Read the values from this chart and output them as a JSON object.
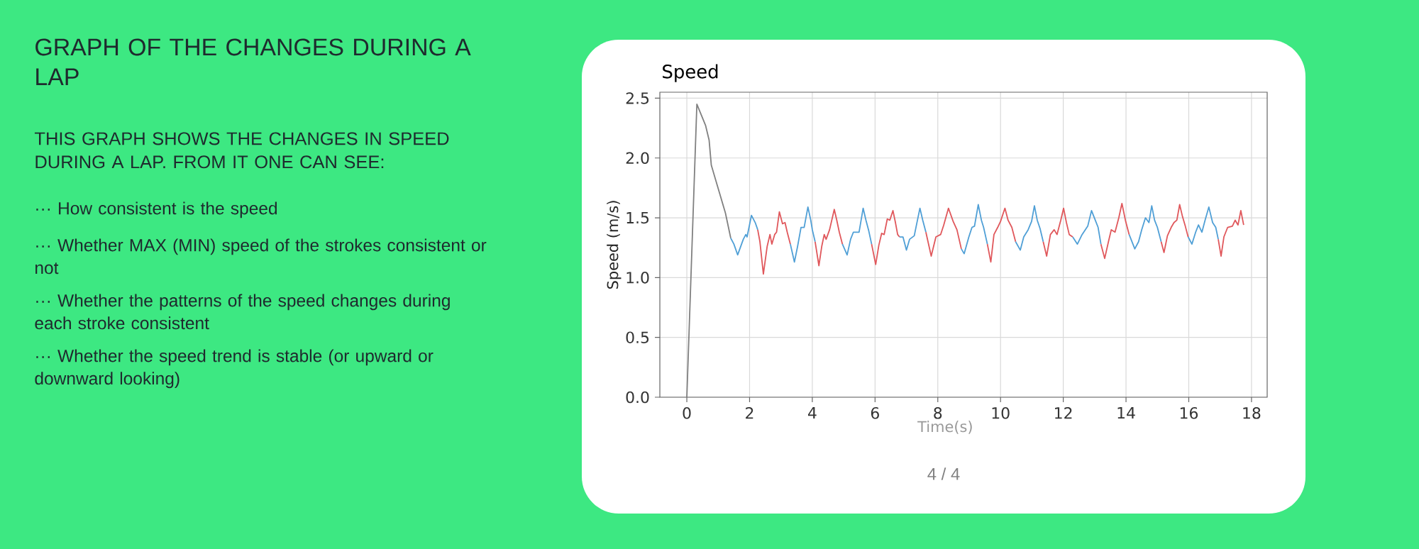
{
  "chart_data": {
    "type": "line",
    "title": "Speed",
    "xlabel": "Time(s)",
    "ylabel": "Speed (m/s)",
    "annotations": [
      "GRAPH OF THE CHANGES DURING A LAP",
      "THIS GRAPH SHOWS THE CHANGES IN SPEED DURING A LAP. FROM IT ONE CAN SEE:",
      "··· How consistent is the speed",
      "··· Whether MAX (MIN) speed of the strokes consistent or not",
      "··· Whether the patterns of the speed changes during each stroke consistent",
      "··· Whether the speed trend is stable (or upward or downward looking)",
      "4 / 4"
    ],
    "xlim": [
      -0.86,
      18.5
    ],
    "ylim": [
      0,
      2.55
    ],
    "xticks": [
      0,
      2,
      4,
      6,
      8,
      10,
      12,
      14,
      16,
      18
    ],
    "yticks": [
      {
        "value": 0,
        "label": "0.0"
      },
      0.5,
      {
        "value": 1,
        "label": "1.0"
      },
      1.5,
      {
        "value": 2,
        "label": "2.0"
      },
      2.5
    ],
    "grid": true,
    "line_style": "solid",
    "marker": "none",
    "series": [
      {
        "color": "#808080",
        "x": [
          0,
          0.32,
          0.6,
          0.71,
          0.78,
          1.05,
          1.23,
          1.4
        ],
        "values": [
          0,
          2.45,
          2.27,
          2.15,
          1.94,
          1.7,
          1.54,
          1.33
        ]
      },
      {
        "color": "#4f9fd6",
        "x": [
          1.4,
          1.5,
          1.62,
          1.8,
          1.88,
          1.92,
          2.06,
          2.18,
          2.26
        ],
        "values": [
          1.33,
          1.28,
          1.19,
          1.32,
          1.36,
          1.34,
          1.52,
          1.46,
          1.4
        ]
      },
      {
        "color": "#e0575b",
        "x": [
          2.26,
          2.33,
          2.44,
          2.56,
          2.65,
          2.71,
          2.8,
          2.86,
          2.95,
          3.05,
          3.13,
          3.2,
          3.3
        ],
        "values": [
          1.4,
          1.3,
          1.03,
          1.26,
          1.36,
          1.28,
          1.36,
          1.38,
          1.55,
          1.45,
          1.46,
          1.38,
          1.28
        ]
      },
      {
        "color": "#4f9fd6",
        "x": [
          3.3,
          3.43,
          3.53,
          3.64,
          3.74,
          3.86,
          3.95,
          4.0,
          4.09
        ],
        "values": [
          1.28,
          1.13,
          1.26,
          1.42,
          1.42,
          1.59,
          1.48,
          1.4,
          1.3
        ]
      },
      {
        "color": "#e0575b",
        "x": [
          4.09,
          4.21,
          4.3,
          4.38,
          4.44,
          4.55,
          4.7,
          4.78,
          4.86,
          4.96
        ],
        "values": [
          1.3,
          1.1,
          1.26,
          1.36,
          1.32,
          1.4,
          1.57,
          1.48,
          1.38,
          1.28
        ]
      },
      {
        "color": "#4f9fd6",
        "x": [
          4.96,
          5.11,
          5.22,
          5.31,
          5.49,
          5.62,
          5.71,
          5.8,
          5.89
        ],
        "values": [
          1.28,
          1.19,
          1.32,
          1.38,
          1.38,
          1.58,
          1.48,
          1.39,
          1.28
        ]
      },
      {
        "color": "#e0575b",
        "x": [
          5.89,
          6.02,
          6.12,
          6.21,
          6.29,
          6.39,
          6.47,
          6.57,
          6.65,
          6.72,
          6.78
        ],
        "values": [
          1.28,
          1.11,
          1.27,
          1.37,
          1.36,
          1.49,
          1.48,
          1.56,
          1.46,
          1.36,
          1.34
        ]
      },
      {
        "color": "#4f9fd6",
        "x": [
          6.78,
          6.89,
          7.0,
          7.1,
          7.25,
          7.32,
          7.43,
          7.52,
          7.62
        ],
        "values": [
          1.34,
          1.34,
          1.23,
          1.32,
          1.35,
          1.44,
          1.58,
          1.48,
          1.38
        ]
      },
      {
        "color": "#e0575b",
        "x": [
          7.62,
          7.79,
          7.94,
          8.09,
          8.19,
          8.34,
          8.49,
          8.61,
          8.75
        ],
        "values": [
          1.38,
          1.18,
          1.34,
          1.36,
          1.44,
          1.58,
          1.47,
          1.4,
          1.24
        ]
      },
      {
        "color": "#4f9fd6",
        "x": [
          8.75,
          8.84,
          8.99,
          9.09,
          9.17,
          9.29,
          9.39,
          9.46,
          9.58
        ],
        "values": [
          1.24,
          1.2,
          1.34,
          1.42,
          1.43,
          1.61,
          1.48,
          1.42,
          1.28
        ]
      },
      {
        "color": "#e0575b",
        "x": [
          9.58,
          9.69,
          9.79,
          9.91,
          10.0,
          10.14,
          10.24,
          10.36,
          10.48
        ],
        "values": [
          1.28,
          1.13,
          1.36,
          1.42,
          1.47,
          1.58,
          1.48,
          1.42,
          1.3
        ]
      },
      {
        "color": "#4f9fd6",
        "x": [
          10.48,
          10.63,
          10.74,
          10.88,
          10.99,
          11.08,
          11.17,
          11.26,
          11.36
        ],
        "values": [
          1.3,
          1.23,
          1.34,
          1.4,
          1.47,
          1.6,
          1.48,
          1.41,
          1.3
        ]
      },
      {
        "color": "#e0575b",
        "x": [
          11.36,
          11.47,
          11.59,
          11.71,
          11.8,
          11.92,
          12.01,
          12.1,
          12.19,
          12.3
        ],
        "values": [
          1.3,
          1.18,
          1.36,
          1.4,
          1.36,
          1.48,
          1.58,
          1.46,
          1.36,
          1.34
        ]
      },
      {
        "color": "#4f9fd6",
        "x": [
          12.3,
          12.45,
          12.6,
          12.78,
          12.9,
          13.02,
          13.11,
          13.2
        ],
        "values": [
          1.34,
          1.28,
          1.36,
          1.43,
          1.56,
          1.48,
          1.42,
          1.28
        ]
      },
      {
        "color": "#e0575b",
        "x": [
          13.2,
          13.32,
          13.44,
          13.53,
          13.65,
          13.77,
          13.87,
          13.98,
          14.1
        ],
        "values": [
          1.28,
          1.16,
          1.3,
          1.4,
          1.38,
          1.5,
          1.62,
          1.48,
          1.36
        ]
      },
      {
        "color": "#4f9fd6",
        "x": [
          14.1,
          14.28,
          14.4,
          14.5,
          14.62,
          14.73,
          14.82,
          14.91,
          15.0,
          15.12
        ],
        "values": [
          1.36,
          1.24,
          1.3,
          1.4,
          1.5,
          1.46,
          1.6,
          1.48,
          1.42,
          1.3
        ]
      },
      {
        "color": "#e0575b",
        "x": [
          15.12,
          15.21,
          15.32,
          15.44,
          15.53,
          15.62,
          15.71,
          15.8,
          15.89,
          15.98
        ],
        "values": [
          1.3,
          1.21,
          1.35,
          1.42,
          1.46,
          1.48,
          1.61,
          1.51,
          1.43,
          1.34
        ]
      },
      {
        "color": "#4f9fd6",
        "x": [
          15.98,
          16.1,
          16.22,
          16.31,
          16.42,
          16.52,
          16.64,
          16.76,
          16.86,
          16.94
        ],
        "values": [
          1.34,
          1.28,
          1.38,
          1.44,
          1.38,
          1.48,
          1.59,
          1.46,
          1.42,
          1.32
        ]
      },
      {
        "color": "#e0575b",
        "x": [
          16.94,
          17.03,
          17.12,
          17.24,
          17.39,
          17.48,
          17.57,
          17.66,
          17.75
        ],
        "values": [
          1.32,
          1.18,
          1.34,
          1.42,
          1.43,
          1.48,
          1.44,
          1.56,
          1.44
        ]
      }
    ]
  }
}
